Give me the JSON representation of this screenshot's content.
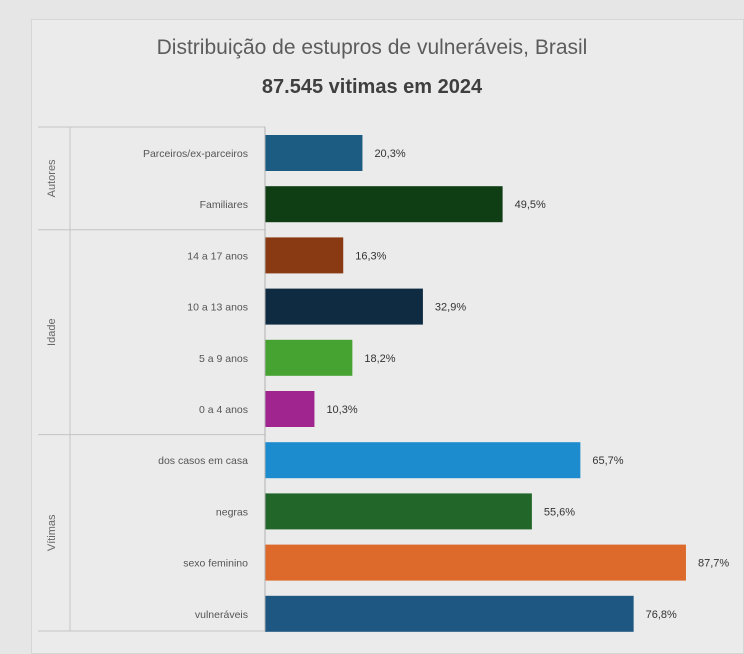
{
  "chart_data": {
    "type": "bar",
    "orientation": "horizontal",
    "title": "Distribuição de estupros de vulneráveis, Brasil",
    "subtitle": "87.545 vitimas em 2024",
    "xlim": [
      0,
      100
    ],
    "grid": false,
    "legend": "none",
    "groups": [
      {
        "name": "Autores",
        "bars": [
          {
            "label": "Parceiros/ex-parceiros",
            "value": 20.3,
            "value_label": "20,3%",
            "color": "#1d5c82"
          },
          {
            "label": "Familiares",
            "value": 49.5,
            "value_label": "49,5%",
            "color": "#0f3d14"
          }
        ]
      },
      {
        "name": "Idade",
        "bars": [
          {
            "label": "14 a 17 anos",
            "value": 16.3,
            "value_label": "16,3%",
            "color": "#8a3a12"
          },
          {
            "label": "10 a 13 anos",
            "value": 32.9,
            "value_label": "32,9%",
            "color": "#0f2b42"
          },
          {
            "label": "5 a 9 anos",
            "value": 18.2,
            "value_label": "18,2%",
            "color": "#46a331"
          },
          {
            "label": "0 a 4 anos",
            "value": 10.3,
            "value_label": "10,3%",
            "color": "#a0258f"
          }
        ]
      },
      {
        "name": "Vítimas",
        "bars": [
          {
            "label": "dos casos em casa",
            "value": 65.7,
            "value_label": "65,7%",
            "color": "#1c8ccf"
          },
          {
            "label": "negras",
            "value": 55.6,
            "value_label": "55,6%",
            "color": "#23662a"
          },
          {
            "label": "sexo feminino",
            "value": 87.7,
            "value_label": "87,7%",
            "color": "#dd6a2b"
          },
          {
            "label": "vulneráveis",
            "value": 76.8,
            "value_label": "76,8%",
            "color": "#1d5782"
          }
        ]
      }
    ]
  }
}
